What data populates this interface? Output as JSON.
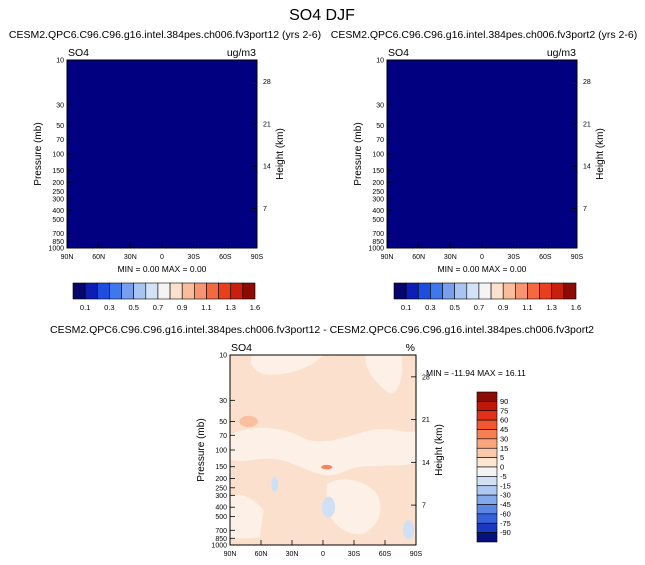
{
  "page": {
    "title": "SO4 DJF"
  },
  "chart_data": [
    {
      "type": "heatmap",
      "title": "CESM2.QPC6.C96.C96.g16.intel.384pes.ch006.fv3port12 (yrs 2-6)",
      "variable": "SO4",
      "units": "ug/m3",
      "ylabel": "Pressure (mb)",
      "y2label": "Height (km)",
      "x_ticks": [
        "90N",
        "60N",
        "30N",
        "0",
        "30S",
        "60S",
        "90S"
      ],
      "y_ticks": [
        "10",
        "30",
        "50",
        "70",
        "100",
        "150",
        "200",
        "250",
        "300",
        "400",
        "500",
        "700",
        "850",
        "1000"
      ],
      "y2_ticks": [
        "28",
        "21",
        "14",
        "7"
      ],
      "stats": "MIN =   0.00  MAX =   0.00",
      "field": "uniform",
      "field_color": "#000080",
      "colorbar": {
        "orientation": "horizontal",
        "labels": [
          "0.1",
          "0.3",
          "0.5",
          "0.7",
          "0.9",
          "1.1",
          "1.3",
          "1.6"
        ],
        "colors": [
          "#06066c",
          "#0c1eb4",
          "#1d4ee0",
          "#3f78ee",
          "#779fee",
          "#a9c3f2",
          "#d3e2f6",
          "#f4f4f4",
          "#fbe0cd",
          "#f9bd9c",
          "#f89470",
          "#f4693f",
          "#e8401c",
          "#c81f0e",
          "#8e0b05"
        ]
      }
    },
    {
      "type": "heatmap",
      "title": "CESM2.QPC6.C96.C96.g16.intel.384pes.ch006.fv3port2 (yrs 2-6)",
      "variable": "SO4",
      "units": "ug/m3",
      "ylabel": "Pressure (mb)",
      "y2label": "Height (km)",
      "x_ticks": [
        "90N",
        "60N",
        "30N",
        "0",
        "30S",
        "60S",
        "90S"
      ],
      "y_ticks": [
        "10",
        "30",
        "50",
        "70",
        "100",
        "150",
        "200",
        "250",
        "300",
        "400",
        "500",
        "700",
        "850",
        "1000"
      ],
      "y2_ticks": [
        "28",
        "21",
        "14",
        "7"
      ],
      "stats": "MIN =   0.00  MAX =   0.00",
      "field": "uniform",
      "field_color": "#000080",
      "colorbar": {
        "orientation": "horizontal",
        "labels": [
          "0.1",
          "0.3",
          "0.5",
          "0.7",
          "0.9",
          "1.1",
          "1.3",
          "1.6"
        ],
        "colors": [
          "#06066c",
          "#0c1eb4",
          "#1d4ee0",
          "#3f78ee",
          "#779fee",
          "#a9c3f2",
          "#d3e2f6",
          "#f4f4f4",
          "#fbe0cd",
          "#f9bd9c",
          "#f89470",
          "#f4693f",
          "#e8401c",
          "#c81f0e",
          "#8e0b05"
        ]
      }
    },
    {
      "type": "heatmap",
      "title": "CESM2.QPC6.C96.C96.g16.intel.384pes.ch006.fv3port12 - CESM2.QPC6.C96.C96.g16.intel.384pes.ch006.fv3port2",
      "variable": "SO4",
      "units": "%",
      "ylabel": "Pressure (mb)",
      "y2label": "Height (km)",
      "x_ticks": [
        "90N",
        "60N",
        "30N",
        "0",
        "30S",
        "60S",
        "90S"
      ],
      "y_ticks": [
        "10",
        "30",
        "50",
        "70",
        "100",
        "150",
        "200",
        "250",
        "300",
        "400",
        "500",
        "700",
        "850",
        "1000"
      ],
      "y2_ticks": [
        "28",
        "21",
        "14",
        "7"
      ],
      "stats": "MIN = -11.94  MAX =  16.11",
      "field": "difference",
      "background_color": "#fbe0cd",
      "colorbar": {
        "orientation": "vertical",
        "labels": [
          "90",
          "75",
          "60",
          "45",
          "30",
          "15",
          "5",
          "0",
          "-5",
          "-15",
          "-30",
          "-45",
          "-60",
          "-75",
          "-90"
        ],
        "colors": [
          "#8c0b05",
          "#c0170a",
          "#e2301a",
          "#f2572f",
          "#f68052",
          "#f9a67e",
          "#fbc8a8",
          "#fce5d3",
          "#f4f4f4",
          "#d3e0f4",
          "#aec8f2",
          "#84a8ee",
          "#5b86e6",
          "#3561da",
          "#1939c0",
          "#07127f"
        ]
      }
    }
  ]
}
